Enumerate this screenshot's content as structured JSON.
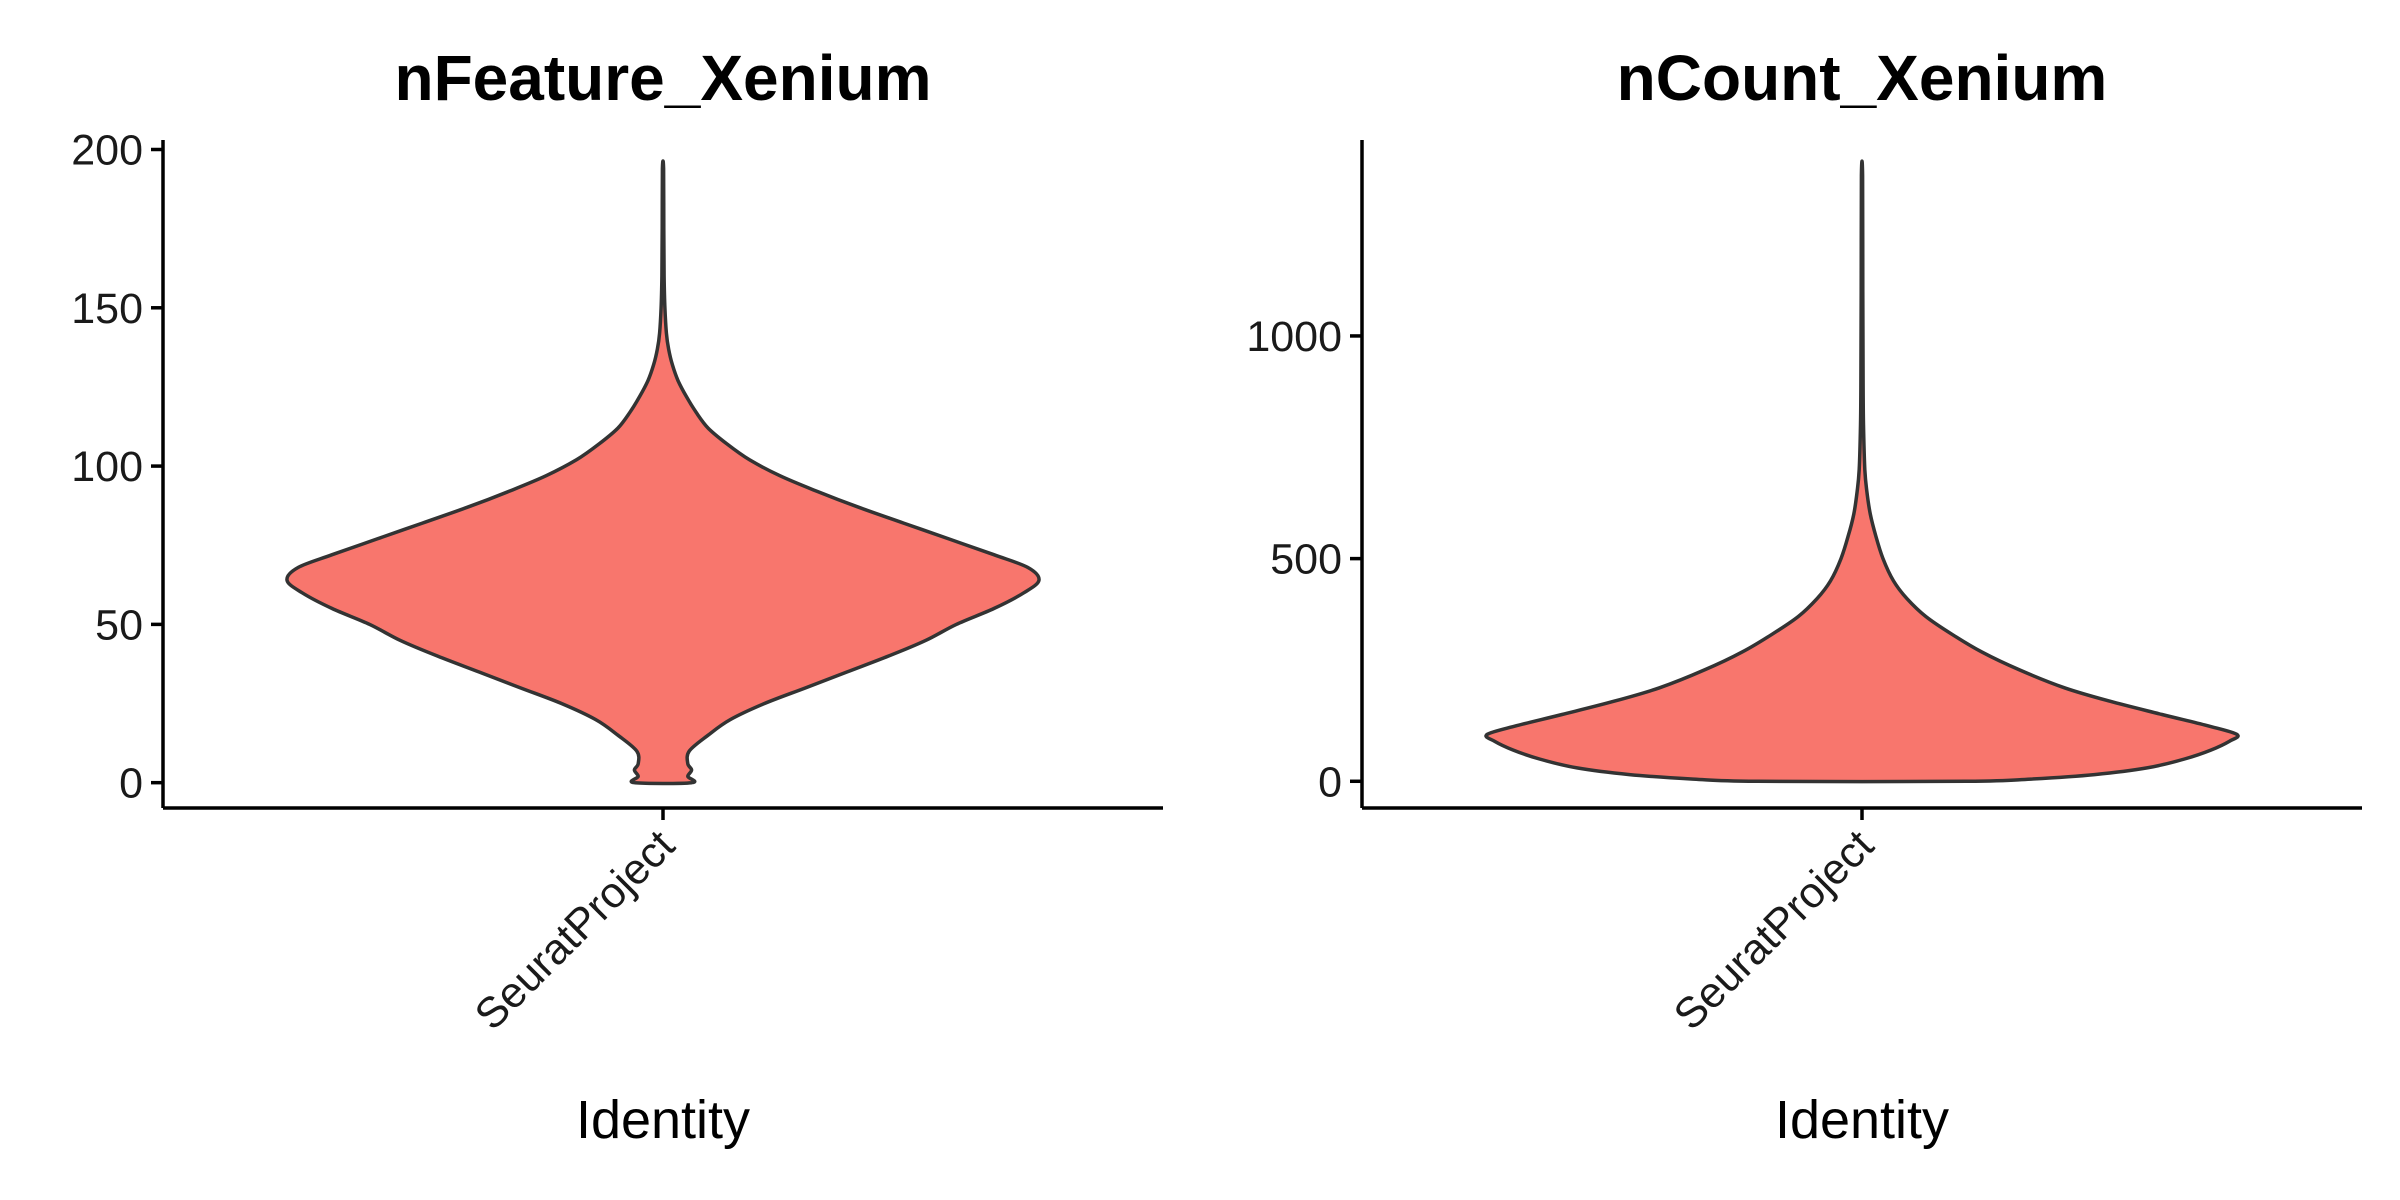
{
  "chart_data": [
    {
      "type": "violin",
      "title": "nFeature_Xenium",
      "xlabel": "Identity",
      "ylabel": "",
      "categories": [
        "SeuratProject"
      ],
      "ylim": [
        -8,
        203
      ],
      "y_ticks": [
        0,
        50,
        100,
        150,
        200
      ],
      "y_tick_labels": [
        "0",
        "50",
        "100",
        "150",
        "200"
      ],
      "fill_color": "#F8766D",
      "outline_color": "#333333",
      "grid": false,
      "legend": "none",
      "value_range": [
        0,
        194
      ],
      "density_profile": [
        {
          "y": 0,
          "width": 0.076
        },
        {
          "y": 2,
          "width": 0.066
        },
        {
          "y": 4,
          "width": 0.076
        },
        {
          "y": 6,
          "width": 0.066
        },
        {
          "y": 10,
          "width": 0.07
        },
        {
          "y": 15,
          "width": 0.12
        },
        {
          "y": 20,
          "width": 0.18
        },
        {
          "y": 25,
          "width": 0.27
        },
        {
          "y": 30,
          "width": 0.38
        },
        {
          "y": 35,
          "width": 0.49
        },
        {
          "y": 40,
          "width": 0.6
        },
        {
          "y": 45,
          "width": 0.7
        },
        {
          "y": 50,
          "width": 0.78
        },
        {
          "y": 55,
          "width": 0.88
        },
        {
          "y": 60,
          "width": 0.96
        },
        {
          "y": 64,
          "width": 1.0
        },
        {
          "y": 68,
          "width": 0.97
        },
        {
          "y": 72,
          "width": 0.88
        },
        {
          "y": 77,
          "width": 0.76
        },
        {
          "y": 82,
          "width": 0.64
        },
        {
          "y": 87,
          "width": 0.52
        },
        {
          "y": 92,
          "width": 0.41
        },
        {
          "y": 97,
          "width": 0.31
        },
        {
          "y": 102,
          "width": 0.23
        },
        {
          "y": 107,
          "width": 0.17
        },
        {
          "y": 112,
          "width": 0.12
        },
        {
          "y": 117,
          "width": 0.088
        },
        {
          "y": 122,
          "width": 0.062
        },
        {
          "y": 127,
          "width": 0.04
        },
        {
          "y": 132,
          "width": 0.025
        },
        {
          "y": 137,
          "width": 0.015
        },
        {
          "y": 142,
          "width": 0.009
        },
        {
          "y": 150,
          "width": 0.005
        },
        {
          "y": 160,
          "width": 0.003
        },
        {
          "y": 175,
          "width": 0.002
        },
        {
          "y": 194,
          "width": 0.0015
        }
      ]
    },
    {
      "type": "violin",
      "title": "nCount_Xenium",
      "xlabel": "Identity",
      "ylabel": "",
      "categories": [
        "SeuratProject"
      ],
      "ylim": [
        -60,
        1440
      ],
      "y_ticks": [
        0,
        500,
        1000
      ],
      "y_tick_labels": [
        "0",
        "500",
        "1000"
      ],
      "fill_color": "#F8766D",
      "outline_color": "#333333",
      "grid": false,
      "legend": "none",
      "value_range": [
        0,
        1360
      ],
      "density_profile": [
        {
          "y": 0,
          "width": 0.28
        },
        {
          "y": 5,
          "width": 0.45
        },
        {
          "y": 15,
          "width": 0.62
        },
        {
          "y": 30,
          "width": 0.76
        },
        {
          "y": 50,
          "width": 0.86
        },
        {
          "y": 70,
          "width": 0.93
        },
        {
          "y": 90,
          "width": 0.98
        },
        {
          "y": 105,
          "width": 1.0
        },
        {
          "y": 125,
          "width": 0.92
        },
        {
          "y": 150,
          "width": 0.8
        },
        {
          "y": 180,
          "width": 0.66
        },
        {
          "y": 210,
          "width": 0.54
        },
        {
          "y": 250,
          "width": 0.42
        },
        {
          "y": 290,
          "width": 0.32
        },
        {
          "y": 330,
          "width": 0.24
        },
        {
          "y": 370,
          "width": 0.17
        },
        {
          "y": 410,
          "width": 0.12
        },
        {
          "y": 450,
          "width": 0.084
        },
        {
          "y": 500,
          "width": 0.056
        },
        {
          "y": 550,
          "width": 0.037
        },
        {
          "y": 600,
          "width": 0.022
        },
        {
          "y": 650,
          "width": 0.013
        },
        {
          "y": 700,
          "width": 0.0075
        },
        {
          "y": 800,
          "width": 0.004
        },
        {
          "y": 900,
          "width": 0.003
        },
        {
          "y": 1100,
          "width": 0.0022
        },
        {
          "y": 1360,
          "width": 0.0015
        }
      ]
    }
  ]
}
